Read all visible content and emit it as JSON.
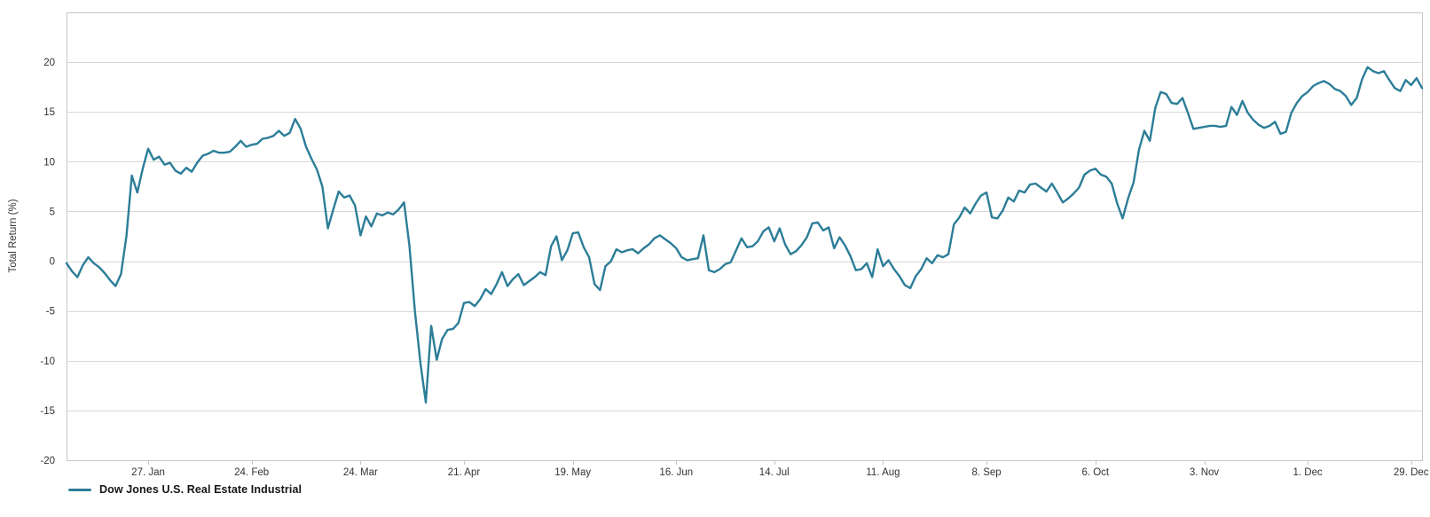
{
  "chart_data": {
    "type": "line",
    "title": "",
    "xlabel": "",
    "ylabel": "Total Return (%)",
    "grid": true,
    "legend_position": "bottom-left",
    "n_points": 250,
    "y_axis": {
      "min": -20,
      "max": 25,
      "tick_step": 5,
      "tick_labels": [
        20,
        15,
        10,
        5,
        0,
        -5,
        -10,
        -15,
        -20
      ]
    },
    "x_axis": {
      "ticks": [
        {
          "label": "27. Jan",
          "index": 15
        },
        {
          "label": "24. Feb",
          "index": 34
        },
        {
          "label": "24. Mar",
          "index": 54
        },
        {
          "label": "21. Apr",
          "index": 73
        },
        {
          "label": "19. May",
          "index": 93
        },
        {
          "label": "16. Jun",
          "index": 112
        },
        {
          "label": "14. Jul",
          "index": 130
        },
        {
          "label": "11. Aug",
          "index": 150
        },
        {
          "label": "8. Sep",
          "index": 169
        },
        {
          "label": "6. Oct",
          "index": 189
        },
        {
          "label": "3. Nov",
          "index": 209
        },
        {
          "label": "1. Dec",
          "index": 228
        },
        {
          "label": "29. Dec",
          "index": 247
        }
      ]
    },
    "series": [
      {
        "name": "Dow Jones U.S. Real Estate Industrial",
        "color": "#2c7d98",
        "values": [
          -0.2,
          -1.0,
          -1.6,
          -0.4,
          0.4,
          -0.2,
          -0.6,
          -1.2,
          -1.9,
          -2.5,
          -1.3,
          2.5,
          8.6,
          6.9,
          9.3,
          11.3,
          10.2,
          10.5,
          9.7,
          9.9,
          9.1,
          8.8,
          9.4,
          9.0,
          9.9,
          10.6,
          10.8,
          11.1,
          10.9,
          10.9,
          11.0,
          11.5,
          12.1,
          11.5,
          11.7,
          11.8,
          12.3,
          12.4,
          12.6,
          13.1,
          12.6,
          12.9,
          14.3,
          13.3,
          11.5,
          10.3,
          9.2,
          7.5,
          3.3,
          5.2,
          7.0,
          6.4,
          6.6,
          5.6,
          2.6,
          4.5,
          3.5,
          4.8,
          4.6,
          4.9,
          4.7,
          5.2,
          5.9,
          1.5,
          -5.0,
          -10.2,
          -14.2,
          -6.5,
          -9.9,
          -7.8,
          -6.9,
          -6.8,
          -6.2,
          -4.2,
          -4.1,
          -4.5,
          -3.8,
          -2.8,
          -3.3,
          -2.3,
          -1.1,
          -2.5,
          -1.8,
          -1.3,
          -2.4,
          -2.0,
          -1.6,
          -1.1,
          -1.4,
          1.5,
          2.5,
          0.1,
          1.1,
          2.8,
          2.9,
          1.4,
          0.4,
          -2.3,
          -2.9,
          -0.5,
          0.0,
          1.2,
          0.9,
          1.1,
          1.2,
          0.8,
          1.3,
          1.7,
          2.3,
          2.6,
          2.2,
          1.8,
          1.3,
          0.4,
          0.1,
          0.2,
          0.3,
          2.6,
          -0.9,
          -1.1,
          -0.8,
          -0.3,
          -0.1,
          1.1,
          2.3,
          1.4,
          1.5,
          2.0,
          3.0,
          3.4,
          2.0,
          3.3,
          1.7,
          0.7,
          1.0,
          1.6,
          2.4,
          3.8,
          3.9,
          3.1,
          3.4,
          1.3,
          2.4,
          1.6,
          0.5,
          -0.9,
          -0.8,
          -0.2,
          -1.6,
          1.2,
          -0.5,
          0.1,
          -0.8,
          -1.5,
          -2.4,
          -2.7,
          -1.5,
          -0.8,
          0.3,
          -0.2,
          0.6,
          0.4,
          0.7,
          3.7,
          4.4,
          5.4,
          4.8,
          5.8,
          6.6,
          6.9,
          4.4,
          4.3,
          5.1,
          6.4,
          6.0,
          7.1,
          6.9,
          7.7,
          7.8,
          7.4,
          7.0,
          7.8,
          6.9,
          5.9,
          6.3,
          6.8,
          7.4,
          8.7,
          9.1,
          9.3,
          8.7,
          8.5,
          7.8,
          5.8,
          4.3,
          6.3,
          7.9,
          11.2,
          13.1,
          12.1,
          15.4,
          17.0,
          16.8,
          15.9,
          15.8,
          16.4,
          14.9,
          13.3,
          13.4,
          13.5,
          13.6,
          13.6,
          13.5,
          13.6,
          15.5,
          14.7,
          16.1,
          14.9,
          14.2,
          13.7,
          13.4,
          13.6,
          14.0,
          12.8,
          13.0,
          14.9,
          15.9,
          16.6,
          17.0,
          17.6,
          17.9,
          18.1,
          17.8,
          17.3,
          17.1,
          16.6,
          15.7,
          16.4,
          18.3,
          19.5,
          19.1,
          18.9,
          19.1,
          18.2,
          17.4,
          17.1,
          18.2,
          17.7,
          18.4,
          17.4
        ]
      }
    ]
  },
  "colors": {
    "series_line": "#2c7d98",
    "gridline": "#d8d8d8",
    "plot_border": "#c6c6c6",
    "tick_text": "#333333",
    "legend_text": "#161616",
    "background": "#ffffff"
  }
}
